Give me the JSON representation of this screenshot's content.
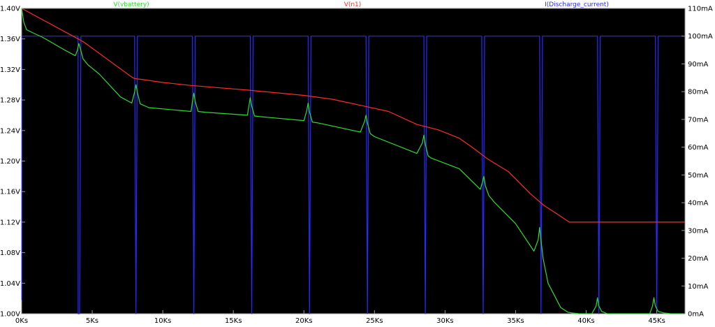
{
  "chart_data": {
    "type": "line",
    "legend_position": "top",
    "background_color": "#000000",
    "axis_color": "#9a9a9a",
    "x_axis": {
      "range": [
        0,
        47000
      ],
      "ticks": [
        0,
        5000,
        10000,
        15000,
        20000,
        25000,
        30000,
        35000,
        40000,
        45000
      ],
      "tick_labels": [
        "0Ks",
        "5Ks",
        "10Ks",
        "15Ks",
        "20Ks",
        "25Ks",
        "30Ks",
        "35Ks",
        "40Ks",
        "45Ks"
      ]
    },
    "y_left": {
      "range": [
        1.0,
        1.4
      ],
      "ticks": [
        1.0,
        1.04,
        1.08,
        1.12,
        1.16,
        1.2,
        1.24,
        1.28,
        1.32,
        1.36,
        1.4
      ],
      "tick_labels": [
        "1.00V",
        "1.04V",
        "1.08V",
        "1.12V",
        "1.16V",
        "1.20V",
        "1.24V",
        "1.28V",
        "1.32V",
        "1.36V",
        "1.40V"
      ]
    },
    "y_right": {
      "range": [
        0,
        110
      ],
      "ticks": [
        0,
        10,
        20,
        30,
        40,
        50,
        60,
        70,
        80,
        90,
        100,
        110
      ],
      "tick_labels": [
        "0mA",
        "10mA",
        "20mA",
        "30mA",
        "40mA",
        "50mA",
        "60mA",
        "70mA",
        "80mA",
        "90mA",
        "100mA",
        "110mA"
      ]
    },
    "series": [
      {
        "name": "V(vbattery)",
        "color": "#2ddc2d",
        "axis": "left",
        "x": [
          0,
          150,
          350,
          800,
          1500,
          3000,
          3800,
          3950,
          4050,
          4150,
          4350,
          4700,
          5500,
          7000,
          7800,
          8000,
          8100,
          8200,
          8400,
          9000,
          12000,
          12100,
          12200,
          12300,
          12500,
          13000,
          16000,
          16100,
          16200,
          16300,
          16500,
          17000,
          20000,
          20200,
          20300,
          20400,
          20600,
          21000,
          24000,
          24300,
          24400,
          24500,
          24700,
          25000,
          28000,
          28400,
          28500,
          28600,
          28800,
          29000,
          31000,
          32500,
          32650,
          32750,
          32850,
          33100,
          33500,
          35000,
          36300,
          36600,
          36700,
          36800,
          36950,
          37300,
          38200,
          38700,
          39000,
          39500,
          40400,
          40700,
          40800,
          40900,
          41100,
          41500,
          42000,
          44500,
          44700,
          44800,
          44900,
          45100,
          45500,
          46000,
          47000
        ],
        "y": [
          1.4,
          1.382,
          1.372,
          1.368,
          1.362,
          1.346,
          1.338,
          1.345,
          1.354,
          1.348,
          1.334,
          1.326,
          1.314,
          1.284,
          1.276,
          1.29,
          1.3,
          1.29,
          1.275,
          1.27,
          1.265,
          1.278,
          1.289,
          1.278,
          1.265,
          1.264,
          1.26,
          1.272,
          1.283,
          1.272,
          1.259,
          1.258,
          1.253,
          1.266,
          1.276,
          1.264,
          1.251,
          1.25,
          1.238,
          1.252,
          1.26,
          1.25,
          1.236,
          1.232,
          1.21,
          1.224,
          1.234,
          1.222,
          1.207,
          1.204,
          1.19,
          1.163,
          1.172,
          1.18,
          1.168,
          1.155,
          1.146,
          1.118,
          1.082,
          1.097,
          1.113,
          1.096,
          1.072,
          1.04,
          1.008,
          1.002,
          1.001,
          1.0,
          1.0,
          1.01,
          1.021,
          1.01,
          1.003,
          1.0,
          1.0,
          1.0,
          1.01,
          1.021,
          1.01,
          1.003,
          1.001,
          1.0,
          1.0
        ]
      },
      {
        "name": "V(n1)",
        "color": "#ff2a2a",
        "axis": "left",
        "x": [
          0,
          4000,
          4400,
          7800,
          8000,
          8500,
          10000,
          12000,
          16000,
          20000,
          22000,
          24000,
          26000,
          28000,
          29500,
          31000,
          32000,
          33000,
          34500,
          36000,
          37000,
          38000,
          38800,
          39500,
          47000
        ],
        "y": [
          1.4,
          1.36,
          1.356,
          1.31,
          1.308,
          1.307,
          1.303,
          1.299,
          1.293,
          1.286,
          1.281,
          1.273,
          1.265,
          1.248,
          1.241,
          1.23,
          1.217,
          1.203,
          1.186,
          1.158,
          1.142,
          1.13,
          1.12,
          1.12,
          1.12
        ]
      },
      {
        "name": "I(Discharge_current)",
        "color": "#2a2aff",
        "axis": "right",
        "x": [
          0,
          10,
          30,
          200,
          3999,
          4000,
          4100,
          4200,
          8000,
          8100,
          8200,
          12100,
          12200,
          12300,
          16200,
          16300,
          16400,
          20300,
          20400,
          20500,
          24400,
          24500,
          24600,
          28500,
          28600,
          28700,
          32600,
          32700,
          32800,
          36700,
          36800,
          36900,
          40800,
          40900,
          41000,
          44900,
          45000,
          45100,
          47000
        ],
        "y": [
          5,
          5,
          100,
          100,
          100,
          0,
          0,
          100,
          100,
          0,
          100,
          100,
          0,
          100,
          100,
          0,
          100,
          100,
          0,
          100,
          100,
          0,
          100,
          100,
          0,
          100,
          100,
          0,
          100,
          100,
          0,
          100,
          100,
          0,
          100,
          100,
          0,
          100,
          100
        ]
      }
    ]
  }
}
